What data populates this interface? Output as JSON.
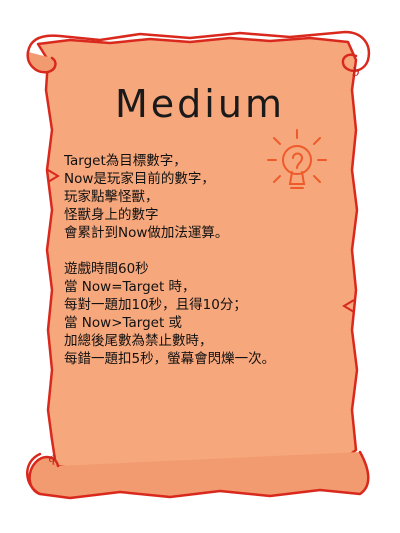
{
  "title": "Medium",
  "rules": {
    "para1": [
      "Target為目標數字，",
      "Now是玩家目前的數字，",
      "玩家點擊怪獸，",
      "怪獸身上的數字",
      "會累計到Now做加法運算。"
    ],
    "para2": [
      "遊戲時間60秒",
      "當 Now=Target 時，",
      "每對一題加10秒，且得10分；",
      "當 Now>Target 或",
      "加總後尾數為禁止數時，",
      "每錯一題扣5秒，螢幕會閃爍一次。"
    ]
  },
  "colors": {
    "parchment": "#f7a77c",
    "border": "#d9291d",
    "bulb": "#ef5a2b"
  },
  "icons": [
    "scroll-parchment",
    "lightbulb-doodle"
  ]
}
